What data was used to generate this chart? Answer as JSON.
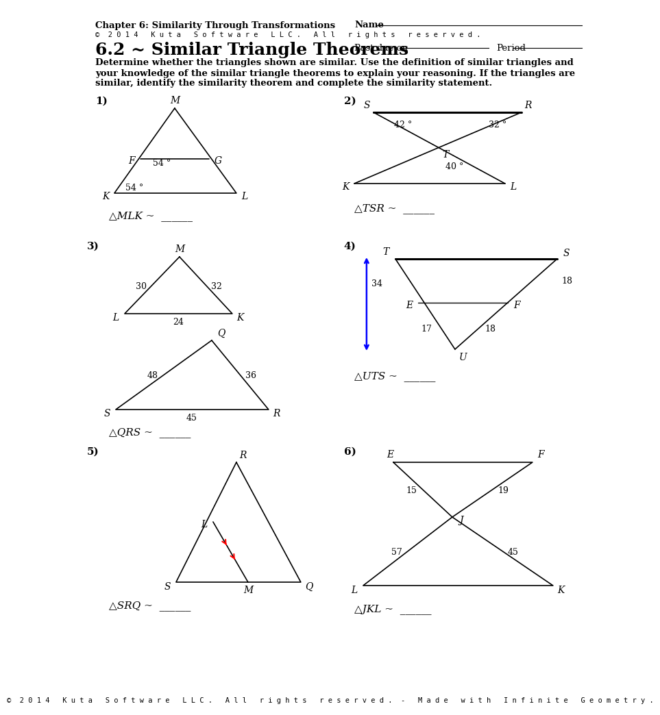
{
  "title_chapter": "Chapter 6: Similarity Through Transformations",
  "title_name": "Name",
  "copyright": "©  2 0 1 4   K u t a   S o f t w a r e   L L C .   A l l   r i g h t s   r e s e r v e d .",
  "subtitle": "6.2 ~ Similar Triangle Theorems",
  "past_due": "Past due on",
  "period": "Period",
  "instr1": "Determine whether the triangles shown are similar. Use the definition of similar triangles and",
  "instr2": "your knowledge of the similar triangle theorems to explain your reasoning. If the triangles are",
  "instr3": "similar, identify the similarity theorem and complete the similarity statement.",
  "footer": "©  2 0 1 4   K u t a   S o f t w a r e   L L C .   A l l   r i g h t s   r e s e r v e d .  -   M a d e   w i t h   I n f i n i t e   G e o m e t r y .",
  "bg_color": "#ffffff",
  "text_color": "#000000"
}
